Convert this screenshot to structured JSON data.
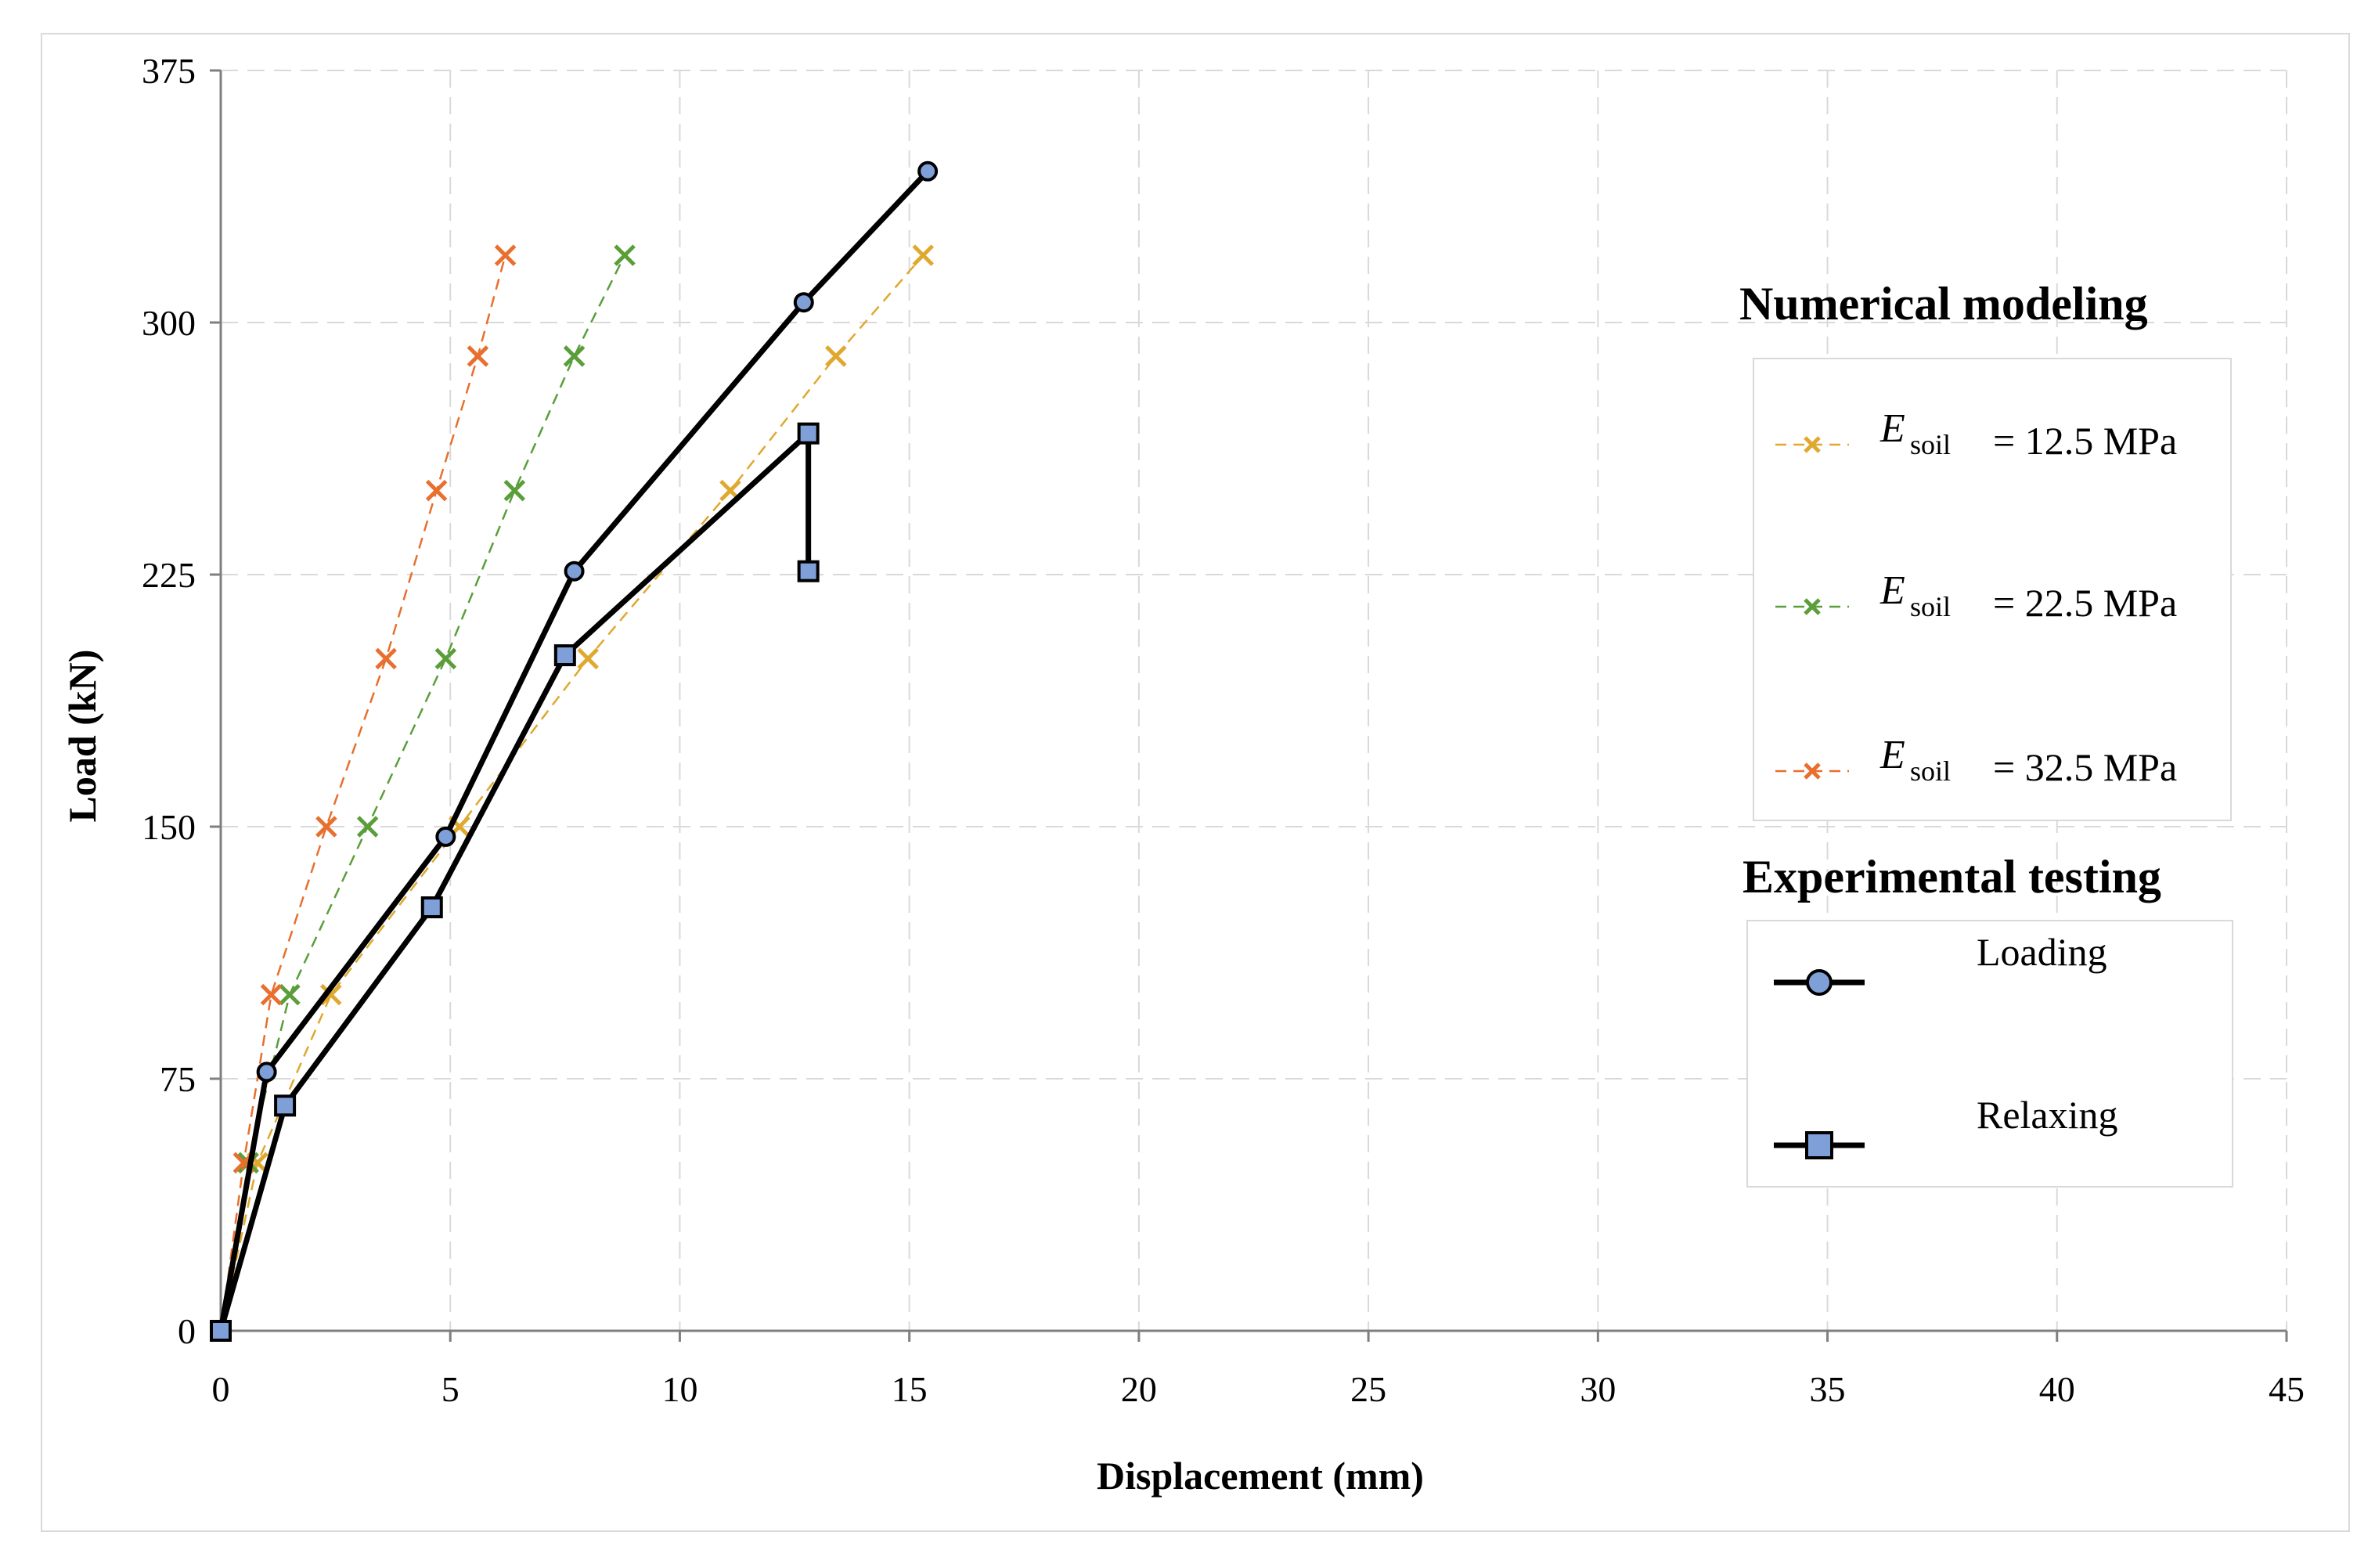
{
  "chart_data": {
    "type": "line",
    "xlabel": "Displacement (mm)",
    "ylabel": "Load (kN)",
    "xlim": [
      0,
      45
    ],
    "ylim": [
      0,
      375
    ],
    "xticks": [
      "0",
      "5",
      "10",
      "15",
      "20",
      "25",
      "30",
      "35",
      "40",
      "45"
    ],
    "yticks": [
      "0",
      "75",
      "150",
      "225",
      "300",
      "375"
    ],
    "grid": true,
    "legend": {
      "numerical_title": "Numerical modeling",
      "experimental_title": "Experimental testing",
      "placement": "right"
    },
    "numerical_series": [
      {
        "name": "E_soil = 12.5 MPa",
        "label_symbol": "E",
        "label_sub": "soil",
        "label_value": "= 12.5 MPa",
        "color": "#e0a82e",
        "x": [
          0,
          0.8,
          2.4,
          5.2,
          8.0,
          11.1,
          13.4,
          15.3
        ],
        "y": [
          0,
          50,
          100,
          150,
          200,
          250,
          290,
          320
        ]
      },
      {
        "name": "E_soil = 22.5 MPa",
        "label_symbol": "E",
        "label_sub": "soil",
        "label_value": "= 22.5 MPa",
        "color": "#5a9e3a",
        "x": [
          0,
          0.6,
          1.5,
          3.2,
          4.9,
          6.4,
          7.7,
          8.8
        ],
        "y": [
          0,
          50,
          100,
          150,
          200,
          250,
          290,
          320
        ]
      },
      {
        "name": "E_soil = 32.5 MPa",
        "label_symbol": "E",
        "label_sub": "soil",
        "label_value": "= 32.5 MPa",
        "color": "#e86f2e",
        "x": [
          0,
          0.5,
          1.1,
          2.3,
          3.6,
          4.7,
          5.6,
          6.2
        ],
        "y": [
          0,
          50,
          100,
          150,
          200,
          250,
          290,
          320
        ]
      }
    ],
    "experimental_series": [
      {
        "name": "Loading",
        "marker": "circle",
        "color": "#000000",
        "marker_fill": "#7f9fd9",
        "x": [
          0,
          1.0,
          4.9,
          7.7,
          12.7,
          15.4
        ],
        "y": [
          0,
          77,
          147,
          226,
          306,
          345
        ]
      },
      {
        "name": "Relaxing",
        "marker": "square",
        "color": "#000000",
        "marker_fill": "#7f9fd9",
        "x": [
          0,
          1.4,
          4.6,
          7.5,
          12.8,
          12.8
        ],
        "y": [
          0,
          67,
          126,
          201,
          267,
          226
        ]
      }
    ]
  }
}
